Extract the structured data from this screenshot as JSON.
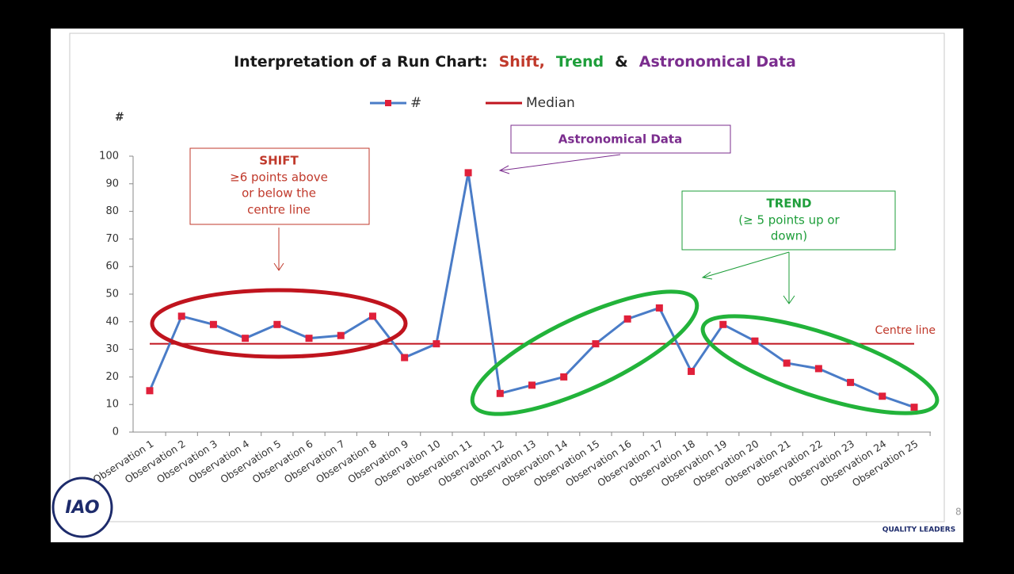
{
  "chart_data": {
    "type": "line",
    "title_parts": [
      {
        "text": "Interpretation of a Run Chart:",
        "color": "#1a1a1a"
      },
      {
        "text": "Shift,",
        "color": "#c0392b"
      },
      {
        "text": "Trend",
        "color": "#1e9e3a"
      },
      {
        "text": "&",
        "color": "#1a1a1a"
      },
      {
        "text": "Astronomical Data",
        "color": "#7b2d8e"
      }
    ],
    "y_label": "#",
    "categories": [
      "Observation 1",
      "Observation 2",
      "Observation 3",
      "Observation 4",
      "Observation 5",
      "Observation 6",
      "Observation 7",
      "Observation 8",
      "Observation 9",
      "Observation 10",
      "Observation 11",
      "Observation 12",
      "Observation 13",
      "Observation 14",
      "Observation 15",
      "Observation 16",
      "Observation 17",
      "Observation 18",
      "Observation 19",
      "Observation 20",
      "Observation 21",
      "Observation 22",
      "Observation 23",
      "Observation 24",
      "Observation 25"
    ],
    "series": [
      {
        "name": "#",
        "color": "#4a7cc7",
        "marker_color": "#e0203a",
        "values": [
          15,
          42,
          39,
          34,
          39,
          34,
          35,
          42,
          27,
          32,
          94,
          14,
          17,
          20,
          32,
          41,
          45,
          22,
          39,
          33,
          25,
          23,
          18,
          13,
          9
        ]
      },
      {
        "name": "Median",
        "color": "#c0141e",
        "values": [
          32,
          32,
          32,
          32,
          32,
          32,
          32,
          32,
          32,
          32,
          32,
          32,
          32,
          32,
          32,
          32,
          32,
          32,
          32,
          32,
          32,
          32,
          32,
          32,
          32
        ]
      }
    ],
    "ylim": [
      0,
      100
    ],
    "yticks": [
      0,
      10,
      20,
      30,
      40,
      50,
      60,
      70,
      80,
      90,
      100
    ],
    "annotations": {
      "shift": {
        "heading": "SHIFT",
        "lines": [
          "≥6 points above",
          "or below the",
          "centre line"
        ]
      },
      "astronomical": "Astronomical  Data",
      "trend": {
        "heading": "TREND",
        "lines": [
          "(≥ 5 points up or",
          "down)"
        ]
      },
      "centre_line": "Centre line"
    },
    "logos": {
      "left": "IAO",
      "right": "QUALITY LEADERS"
    },
    "page_number": "8"
  }
}
